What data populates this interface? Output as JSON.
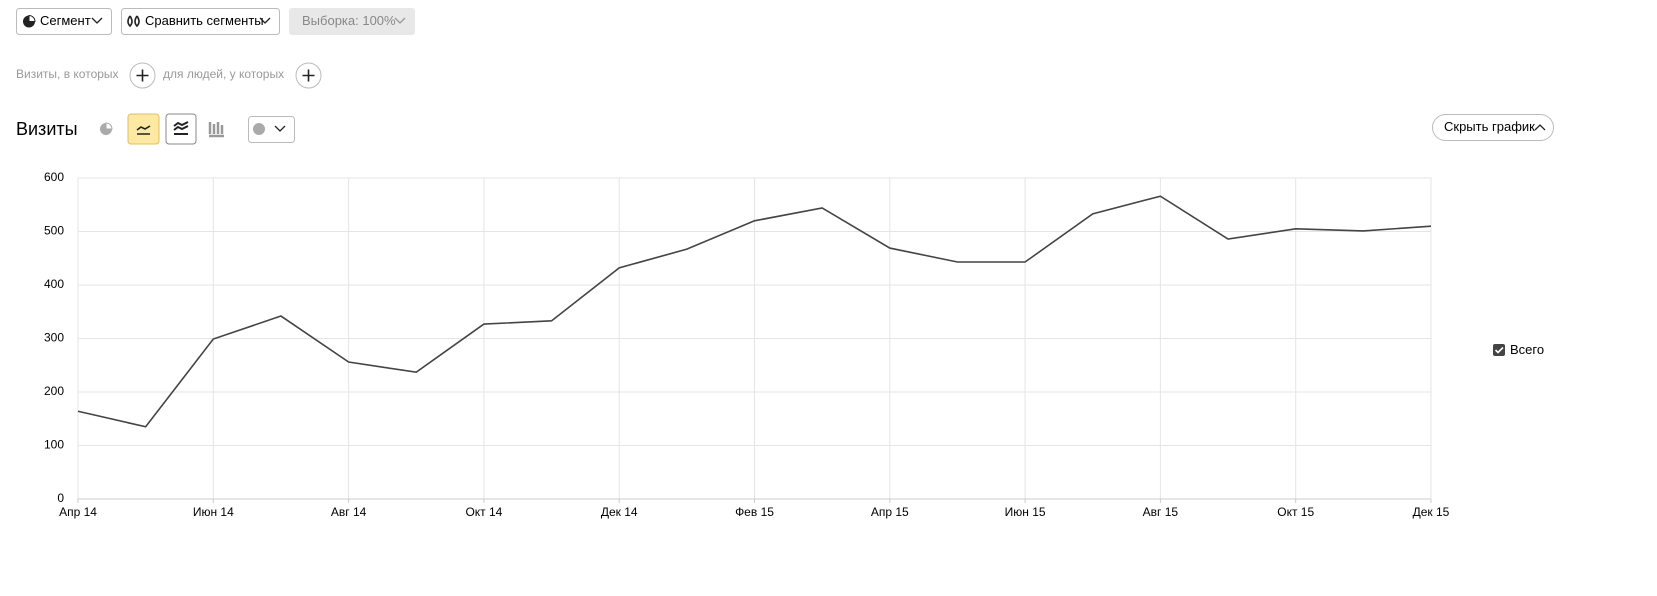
{
  "toolbar": {
    "segment": "Сегмент",
    "compare": "Сравнить сегменты",
    "sample": "Выборка: 100%"
  },
  "filters": {
    "visits": "Визиты, в которых",
    "people": "для людей, у которых"
  },
  "hide_chart": "Скрыть график",
  "chart_data": {
    "type": "line",
    "title": "Визиты",
    "categories": [
      "Апр 14",
      null,
      "Июн 14",
      null,
      "Авг 14",
      null,
      "Окт 14",
      null,
      "Дек 14",
      null,
      "Фев 15",
      null,
      "Апр 15",
      null,
      "Июн 15",
      null,
      "Авг 15",
      null,
      "Окт 15",
      null,
      "Дек 15"
    ],
    "series": [
      {
        "name": "Всего",
        "color": "#444444",
        "values": [
          164,
          135,
          299,
          342,
          256,
          237,
          327,
          333,
          432,
          467,
          520,
          544,
          469,
          443,
          443,
          533,
          566,
          486,
          505,
          501,
          510
        ]
      }
    ],
    "ylim": [
      0,
      600
    ],
    "yticks": [
      0,
      100,
      200,
      300,
      400,
      500,
      600
    ],
    "grid": true,
    "legend": "right"
  }
}
